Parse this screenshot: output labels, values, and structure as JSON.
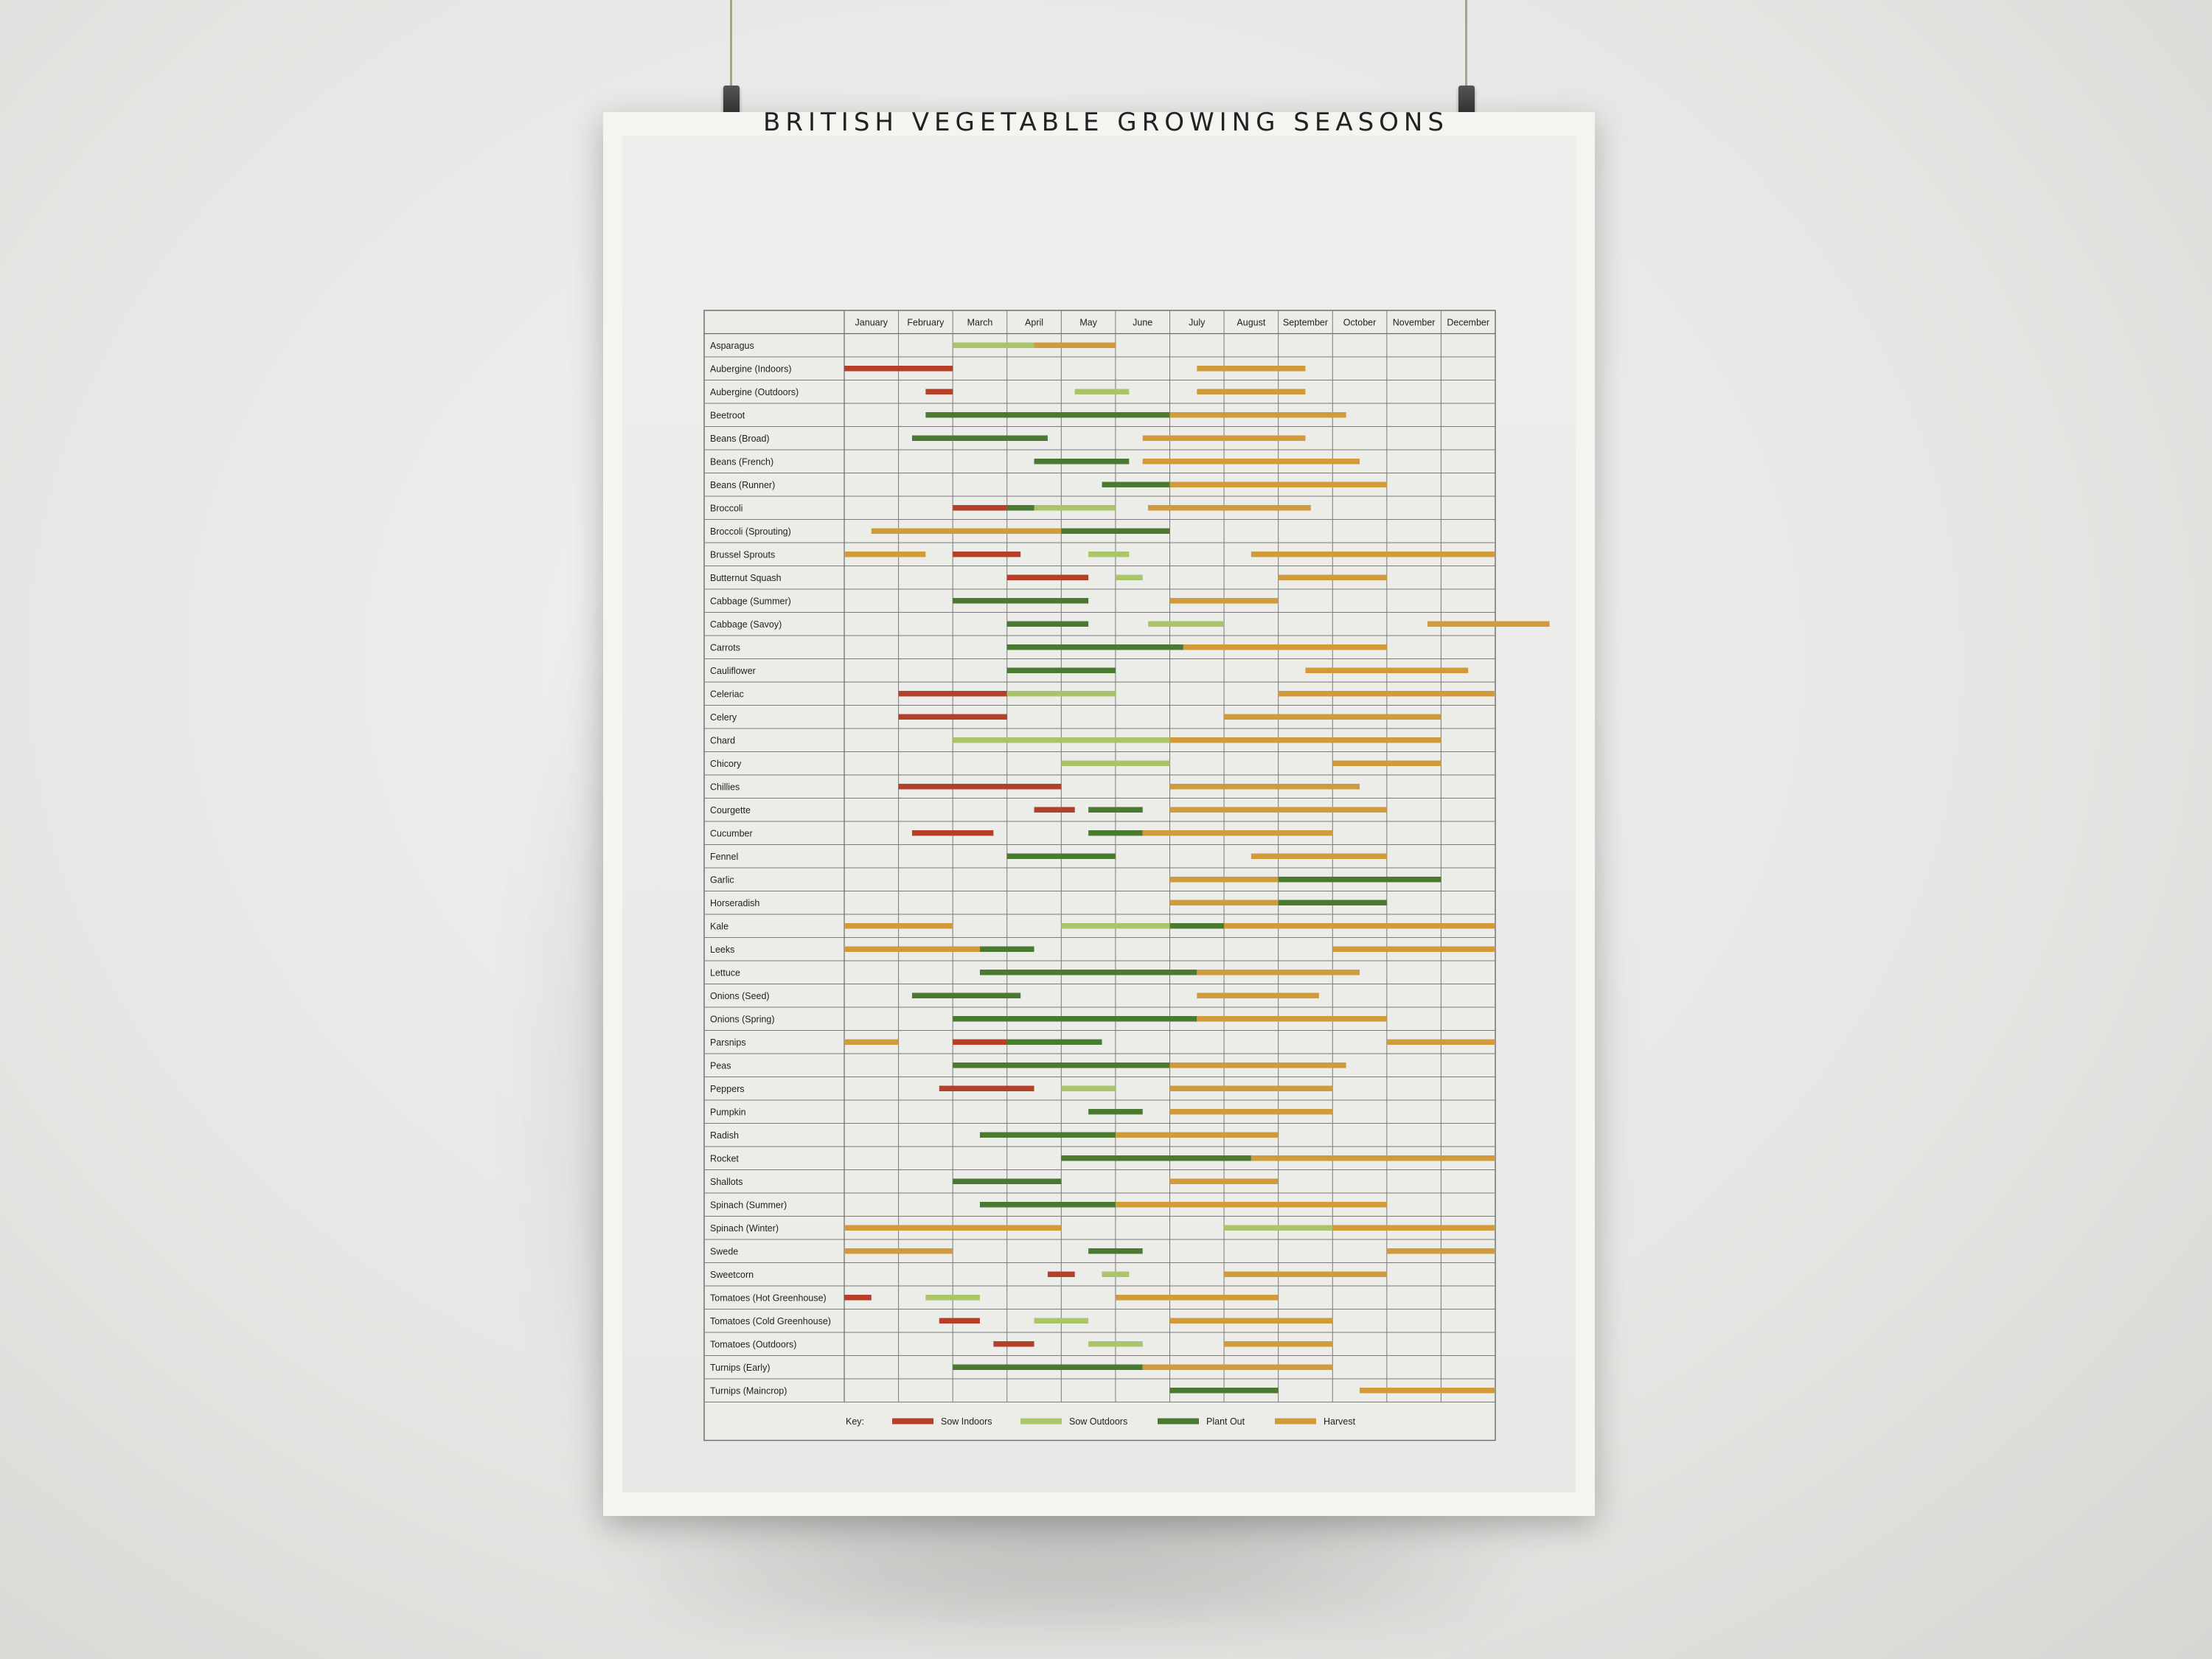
{
  "poster": {
    "title": "BRITISH VEGETABLE GROWING SEASONS"
  },
  "chart_data": {
    "type": "table",
    "title": "BRITISH VEGETABLE GROWING SEASONS",
    "months": [
      "January",
      "February",
      "March",
      "April",
      "May",
      "June",
      "July",
      "August",
      "September",
      "October",
      "November",
      "December"
    ],
    "key": {
      "label": "Key:",
      "items": [
        {
          "name": "Sow Indoors",
          "color": "#b5402a"
        },
        {
          "name": "Sow Outdoors",
          "color": "#a9c46a"
        },
        {
          "name": "Plant Out",
          "color": "#4a7a32"
        },
        {
          "name": "Harvest",
          "color": "#d19a3a"
        }
      ]
    },
    "rows": [
      {
        "name": "Asparagus",
        "bars": [
          [
            "so",
            3,
            4.5
          ],
          [
            "h",
            4.5,
            6
          ]
        ]
      },
      {
        "name": "Aubergine (Indoors)",
        "bars": [
          [
            "si",
            1,
            3
          ],
          [
            "h",
            7.5,
            9.5
          ]
        ]
      },
      {
        "name": "Aubergine (Outdoors)",
        "bars": [
          [
            "si",
            2.5,
            3
          ],
          [
            "so",
            5.25,
            6.25
          ],
          [
            "h",
            7.5,
            9.5
          ]
        ]
      },
      {
        "name": "Beetroot",
        "bars": [
          [
            "po",
            2.5,
            7
          ],
          [
            "h",
            7,
            10.25
          ]
        ]
      },
      {
        "name": "Beans (Broad)",
        "bars": [
          [
            "po",
            2.25,
            4.75
          ],
          [
            "h",
            6.5,
            9.5
          ]
        ]
      },
      {
        "name": "Beans (French)",
        "bars": [
          [
            "po",
            4.5,
            6.25
          ],
          [
            "h",
            6.5,
            10.5
          ]
        ]
      },
      {
        "name": "Beans (Runner)",
        "bars": [
          [
            "po",
            5.75,
            7
          ],
          [
            "h",
            7,
            11
          ]
        ]
      },
      {
        "name": "Broccoli",
        "bars": [
          [
            "si",
            3,
            4
          ],
          [
            "po",
            4,
            4.5
          ],
          [
            "so",
            4.5,
            6
          ],
          [
            "h",
            6.6,
            9.6
          ]
        ]
      },
      {
        "name": "Broccoli (Sprouting)",
        "bars": [
          [
            "h",
            1.5,
            5
          ],
          [
            "po",
            5,
            7
          ]
        ]
      },
      {
        "name": "Brussel Sprouts",
        "bars": [
          [
            "h",
            1,
            2.5
          ],
          [
            "si",
            3,
            4.25
          ],
          [
            "so",
            5.5,
            6.25
          ],
          [
            "h",
            8.5,
            13
          ]
        ]
      },
      {
        "name": "Butternut Squash",
        "bars": [
          [
            "si",
            4,
            5.5
          ],
          [
            "so",
            6,
            6.5
          ],
          [
            "h",
            9,
            11
          ]
        ]
      },
      {
        "name": "Cabbage (Summer)",
        "bars": [
          [
            "po",
            3,
            5.5
          ],
          [
            "h",
            7,
            9
          ]
        ]
      },
      {
        "name": "Cabbage (Savoy)",
        "bars": [
          [
            "po",
            4,
            5.5
          ],
          [
            "so",
            6.6,
            8
          ],
          [
            "h",
            11.75,
            14
          ]
        ]
      },
      {
        "name": "Carrots",
        "bars": [
          [
            "po",
            4,
            7.25
          ],
          [
            "h",
            7.25,
            11
          ]
        ]
      },
      {
        "name": "Cauliflower",
        "bars": [
          [
            "po",
            4,
            6
          ],
          [
            "h",
            9.5,
            12.5
          ]
        ]
      },
      {
        "name": "Celeriac",
        "bars": [
          [
            "si",
            2,
            4
          ],
          [
            "so",
            4,
            6
          ],
          [
            "h",
            9,
            13
          ]
        ]
      },
      {
        "name": "Celery",
        "bars": [
          [
            "si",
            2,
            4
          ],
          [
            "h",
            8,
            12
          ]
        ]
      },
      {
        "name": "Chard",
        "bars": [
          [
            "so",
            3,
            7
          ],
          [
            "h",
            7,
            12
          ]
        ]
      },
      {
        "name": "Chicory",
        "bars": [
          [
            "so",
            5,
            7
          ],
          [
            "h",
            10,
            12
          ]
        ]
      },
      {
        "name": "Chillies",
        "bars": [
          [
            "si",
            2,
            5
          ],
          [
            "h",
            7,
            10.5
          ]
        ]
      },
      {
        "name": "Courgette",
        "bars": [
          [
            "si",
            4.5,
            5.25
          ],
          [
            "po",
            5.5,
            6.5
          ],
          [
            "h",
            7,
            11
          ]
        ]
      },
      {
        "name": "Cucumber",
        "bars": [
          [
            "si",
            2.25,
            3.75
          ],
          [
            "po",
            5.5,
            6.5
          ],
          [
            "h",
            6.5,
            10
          ]
        ]
      },
      {
        "name": "Fennel",
        "bars": [
          [
            "po",
            4,
            6
          ],
          [
            "h",
            8.5,
            11
          ]
        ]
      },
      {
        "name": "Garlic",
        "bars": [
          [
            "h",
            7,
            9
          ],
          [
            "po",
            9,
            12
          ]
        ]
      },
      {
        "name": "Horseradish",
        "bars": [
          [
            "h",
            7,
            9
          ],
          [
            "po",
            9,
            11
          ]
        ]
      },
      {
        "name": "Kale",
        "bars": [
          [
            "h",
            1,
            3
          ],
          [
            "so",
            5,
            7
          ],
          [
            "po",
            7,
            8
          ],
          [
            "h",
            8,
            13
          ]
        ]
      },
      {
        "name": "Leeks",
        "bars": [
          [
            "h",
            1,
            3.5
          ],
          [
            "po",
            3.5,
            4.5
          ],
          [
            "h",
            10,
            13
          ]
        ]
      },
      {
        "name": "Lettuce",
        "bars": [
          [
            "po",
            3.5,
            7.5
          ],
          [
            "h",
            7.5,
            10.5
          ]
        ]
      },
      {
        "name": "Onions (Seed)",
        "bars": [
          [
            "po",
            2.25,
            4.25
          ],
          [
            "h",
            7.5,
            9.75
          ]
        ]
      },
      {
        "name": "Onions (Spring)",
        "bars": [
          [
            "po",
            3,
            7.5
          ],
          [
            "h",
            7.5,
            11
          ]
        ]
      },
      {
        "name": "Parsnips",
        "bars": [
          [
            "h",
            1,
            2
          ],
          [
            "si",
            3,
            4
          ],
          [
            "po",
            4,
            5.75
          ],
          [
            "h",
            11,
            13
          ]
        ]
      },
      {
        "name": "Peas",
        "bars": [
          [
            "po",
            3,
            7
          ],
          [
            "h",
            7,
            10.25
          ]
        ]
      },
      {
        "name": "Peppers",
        "bars": [
          [
            "si",
            2.75,
            4.5
          ],
          [
            "so",
            5,
            6
          ],
          [
            "h",
            7,
            10
          ]
        ]
      },
      {
        "name": "Pumpkin",
        "bars": [
          [
            "po",
            5.5,
            6.5
          ],
          [
            "h",
            7,
            10
          ]
        ]
      },
      {
        "name": "Radish",
        "bars": [
          [
            "po",
            3.5,
            6
          ],
          [
            "h",
            6,
            9
          ]
        ]
      },
      {
        "name": "Rocket",
        "bars": [
          [
            "po",
            5,
            8.5
          ],
          [
            "h",
            8.5,
            13
          ]
        ]
      },
      {
        "name": "Shallots",
        "bars": [
          [
            "po",
            3,
            5
          ],
          [
            "h",
            7,
            9
          ]
        ]
      },
      {
        "name": "Spinach (Summer)",
        "bars": [
          [
            "po",
            3.5,
            6
          ],
          [
            "h",
            6,
            11
          ]
        ]
      },
      {
        "name": "Spinach (Winter)",
        "bars": [
          [
            "h",
            1,
            5
          ],
          [
            "so",
            8,
            10
          ],
          [
            "h",
            10,
            13
          ]
        ]
      },
      {
        "name": "Swede",
        "bars": [
          [
            "h",
            1,
            3
          ],
          [
            "po",
            5.5,
            6.5
          ],
          [
            "h",
            11,
            13
          ]
        ]
      },
      {
        "name": "Sweetcorn",
        "bars": [
          [
            "si",
            4.75,
            5.25
          ],
          [
            "so",
            5.75,
            6.25
          ],
          [
            "h",
            8,
            11
          ]
        ]
      },
      {
        "name": "Tomatoes (Hot Greenhouse)",
        "bars": [
          [
            "si",
            1,
            1.5
          ],
          [
            "so",
            2.5,
            3.5
          ],
          [
            "h",
            6,
            9
          ]
        ]
      },
      {
        "name": "Tomatoes (Cold Greenhouse)",
        "bars": [
          [
            "si",
            2.75,
            3.5
          ],
          [
            "so",
            4.5,
            5.5
          ],
          [
            "h",
            7,
            10
          ]
        ]
      },
      {
        "name": "Tomatoes (Outdoors)",
        "bars": [
          [
            "si",
            3.75,
            4.5
          ],
          [
            "so",
            5.5,
            6.5
          ],
          [
            "h",
            8,
            10
          ]
        ]
      },
      {
        "name": "Turnips (Early)",
        "bars": [
          [
            "po",
            3,
            6.5
          ],
          [
            "h",
            6.5,
            10
          ]
        ]
      },
      {
        "name": "Turnips (Maincrop)",
        "bars": [
          [
            "po",
            7,
            9
          ],
          [
            "h",
            10.5,
            13
          ]
        ]
      }
    ]
  }
}
